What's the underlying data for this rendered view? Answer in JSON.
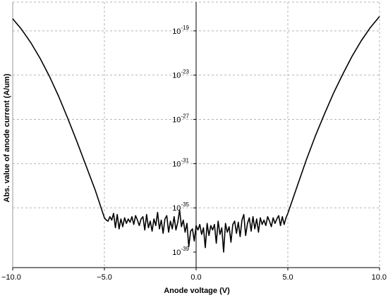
{
  "chart_data": {
    "type": "line",
    "title": "",
    "xlabel": "Anode voltage (V)",
    "ylabel": "Abs. value of anode current (A/um)",
    "xlim": [
      -10,
      10
    ],
    "ylim_log10": [
      -40.4,
      -16.4
    ],
    "y_scale": "log",
    "grid": true,
    "x_ticks": [
      {
        "value": -10,
        "label": "−10.0"
      },
      {
        "value": -5,
        "label": "−5.0"
      },
      {
        "value": 0,
        "label": "0.0"
      },
      {
        "value": 5,
        "label": "5.0"
      },
      {
        "value": 10,
        "label": "10.0"
      }
    ],
    "y_ticks": [
      {
        "exp": -19,
        "base": "10",
        "sup": "-19"
      },
      {
        "exp": -23,
        "base": "10",
        "sup": "-23"
      },
      {
        "exp": -27,
        "base": "10",
        "sup": "-27"
      },
      {
        "exp": -31,
        "base": "10",
        "sup": "-31"
      },
      {
        "exp": -35,
        "base": "10",
        "sup": "-35"
      },
      {
        "exp": -39,
        "base": "10",
        "sup": "-39"
      }
    ],
    "series": [
      {
        "color": "#000000",
        "x": [
          -10,
          -9.5,
          -9,
          -8.5,
          -8,
          -7.5,
          -7,
          -6.5,
          -6,
          -5.5,
          -5,
          -4.9,
          -4.8,
          -4.7,
          -4.6,
          -4.5,
          -4.4,
          -4.3,
          -4.2,
          -4.1,
          -4,
          -3.9,
          -3.8,
          -3.7,
          -3.6,
          -3.5,
          -3.4,
          -3.3,
          -3.2,
          -3.1,
          -3,
          -2.9,
          -2.8,
          -2.7,
          -2.6,
          -2.5,
          -2.4,
          -2.3,
          -2.2,
          -2.1,
          -2,
          -1.9,
          -1.8,
          -1.7,
          -1.6,
          -1.5,
          -1.4,
          -1.3,
          -1.2,
          -1.1,
          -1,
          -0.9,
          -0.8,
          -0.7,
          -0.6,
          -0.5,
          -0.4,
          -0.3,
          -0.2,
          -0.1,
          0,
          0.1,
          0.2,
          0.3,
          0.4,
          0.5,
          0.6,
          0.7,
          0.8,
          0.9,
          1,
          1.1,
          1.2,
          1.3,
          1.4,
          1.5,
          1.6,
          1.7,
          1.8,
          1.9,
          2,
          2.1,
          2.2,
          2.3,
          2.4,
          2.5,
          2.6,
          2.7,
          2.8,
          2.9,
          3,
          3.1,
          3.2,
          3.3,
          3.4,
          3.5,
          3.6,
          3.7,
          3.8,
          3.9,
          4,
          4.1,
          4.2,
          4.3,
          4.4,
          4.5,
          4.6,
          4.7,
          4.8,
          4.9,
          5,
          5.5,
          6,
          6.5,
          7,
          7.5,
          8,
          8.5,
          9,
          9.5,
          10
        ],
        "y_log10": [
          -17.9,
          -18.9,
          -20.1,
          -21.5,
          -23.1,
          -24.9,
          -26.9,
          -29.0,
          -31.2,
          -33.4,
          -35.9,
          -36.1,
          -36.2,
          -35.8,
          -36.1,
          -35.5,
          -36.8,
          -35.6,
          -36.9,
          -36.0,
          -36.7,
          -35.9,
          -36.4,
          -36.0,
          -36.3,
          -35.8,
          -36.5,
          -35.7,
          -36.1,
          -36.6,
          -36.0,
          -35.8,
          -37.0,
          -35.6,
          -36.8,
          -36.2,
          -37.1,
          -36.0,
          -36.6,
          -35.4,
          -36.9,
          -36.1,
          -37.3,
          -36.0,
          -35.7,
          -37.2,
          -36.2,
          -36.9,
          -35.8,
          -37.0,
          -36.3,
          -35.2,
          -36.7,
          -36.1,
          -37.2,
          -36.4,
          -38.5,
          -37.1,
          -36.9,
          -38.0,
          -36.6,
          -37.0,
          -36.5,
          -37.4,
          -36.8,
          -38.6,
          -36.4,
          -37.5,
          -36.6,
          -37.0,
          -36.5,
          -38.2,
          -36.2,
          -37.4,
          -36.8,
          -39.0,
          -36.4,
          -37.2,
          -36.7,
          -38.1,
          -36.5,
          -36.2,
          -37.3,
          -36.3,
          -37.6,
          -36.1,
          -35.6,
          -37.5,
          -36.4,
          -35.9,
          -37.1,
          -35.8,
          -36.9,
          -36.0,
          -37.2,
          -35.9,
          -36.5,
          -36.1,
          -36.6,
          -35.8,
          -36.2,
          -36.7,
          -35.9,
          -36.4,
          -36.0,
          -35.7,
          -36.6,
          -35.8,
          -36.5,
          -35.9,
          -35.5,
          -33.1,
          -30.7,
          -28.5,
          -26.5,
          -24.6,
          -22.9,
          -21.3,
          -19.9,
          -18.7,
          -17.7
        ]
      }
    ]
  }
}
